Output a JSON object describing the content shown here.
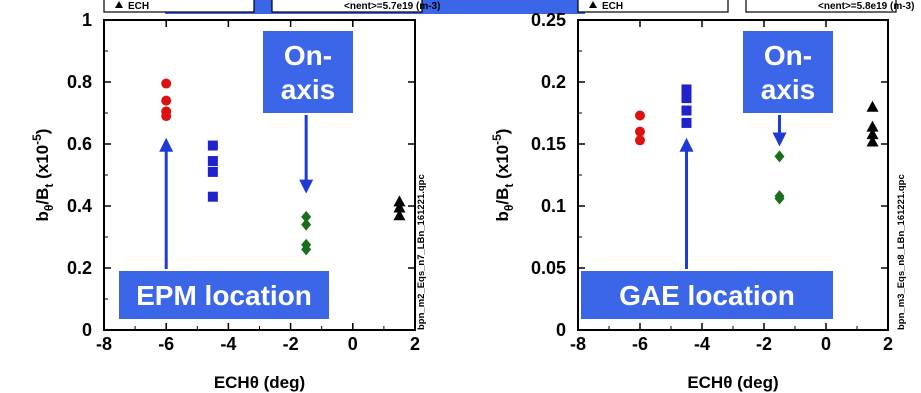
{
  "banner_colors": {
    "callout_fill": "#3b66e8",
    "callout_border": "#ffffff",
    "arrow": "#1f3bd6"
  },
  "colors": {
    "red": "#dd1111",
    "blue": "#2222cc",
    "green": "#1a6e1a",
    "black": "#000000"
  },
  "chart_data": [
    {
      "type": "scatter",
      "xlabel": "ECHθ (deg)",
      "ylabel": "bθ/Bt (x10-5)",
      "xlim": [
        -8,
        2
      ],
      "ylim": [
        0,
        1.0
      ],
      "xticks": [
        -8,
        -6,
        -4,
        -2,
        0,
        2
      ],
      "xtick_labels": [
        "-8",
        "-6",
        "-4",
        "-2",
        "0",
        "2"
      ],
      "yticks": [
        0,
        0.2,
        0.4,
        0.6,
        0.8,
        1.0
      ],
      "ytick_labels": [
        "0",
        "0.2",
        "0.4",
        "0.6",
        "0.8",
        "1"
      ],
      "side_label": "bpn_m2_Eqs_n7_LBn_161221.qpc",
      "top_partial_text": [
        "ECH",
        "<nent>=5.7e19 (m-3)"
      ],
      "series": [
        {
          "marker": "circle",
          "color": "#dd1111",
          "x": [
            -6,
            -6,
            -6,
            -6
          ],
          "y": [
            0.795,
            0.74,
            0.705,
            0.69
          ]
        },
        {
          "marker": "square",
          "color": "#2222cc",
          "x": [
            -4.5,
            -4.5,
            -4.5,
            -4.5
          ],
          "y": [
            0.595,
            0.545,
            0.51,
            0.43
          ]
        },
        {
          "marker": "diamond",
          "color": "#1a6e1a",
          "x": [
            -1.5,
            -1.5,
            -1.5,
            -1.5
          ],
          "y": [
            0.365,
            0.34,
            0.275,
            0.26
          ]
        },
        {
          "marker": "triangle",
          "color": "#000000",
          "x": [
            1.5,
            1.5,
            1.5
          ],
          "y": [
            0.415,
            0.395,
            0.37
          ]
        }
      ],
      "callouts": [
        {
          "text": "On-\naxis",
          "arrow": "down",
          "target_x": -1.5,
          "target_y": 0.44
        },
        {
          "text": "EPM location",
          "arrow": "up",
          "target_x": -6,
          "target_y": 0.62
        }
      ]
    },
    {
      "type": "scatter",
      "xlabel": "ECHθ (deg)",
      "ylabel": "bθ/Bt (x10-5)",
      "xlim": [
        -8,
        2
      ],
      "ylim": [
        0,
        0.25
      ],
      "xticks": [
        -8,
        -6,
        -4,
        -2,
        0,
        2
      ],
      "xtick_labels": [
        "-8",
        "-6",
        "-4",
        "-2",
        "0",
        "2"
      ],
      "yticks": [
        0,
        0.05,
        0.1,
        0.15,
        0.2,
        0.25
      ],
      "ytick_labels": [
        "0",
        "0.05",
        "0.1",
        "0.15",
        "0.2",
        "0.25"
      ],
      "side_label": "bpn_m3_Eqs_n8_LBn_161221.qpc",
      "top_partial_text": [
        "ECH",
        "<nent>=5.8e19 (m-3)"
      ],
      "series": [
        {
          "marker": "circle",
          "color": "#dd1111",
          "x": [
            -6,
            -6,
            -6
          ],
          "y": [
            0.173,
            0.16,
            0.153
          ]
        },
        {
          "marker": "square",
          "color": "#2222cc",
          "x": [
            -4.5,
            -4.5,
            -4.5,
            -4.5
          ],
          "y": [
            0.194,
            0.187,
            0.177,
            0.167
          ]
        },
        {
          "marker": "diamond",
          "color": "#1a6e1a",
          "x": [
            -1.5,
            -1.5,
            -1.5
          ],
          "y": [
            0.14,
            0.108,
            0.106
          ]
        },
        {
          "marker": "triangle",
          "color": "#000000",
          "x": [
            1.5,
            1.5,
            1.5,
            1.5
          ],
          "y": [
            0.18,
            0.164,
            0.158,
            0.152
          ]
        }
      ],
      "callouts": [
        {
          "text": "On-\naxis",
          "arrow": "down",
          "target_x": -1.5,
          "target_y": 0.148
        },
        {
          "text": "GAE location",
          "arrow": "up",
          "target_x": -4.5,
          "target_y": 0.155
        }
      ]
    }
  ],
  "top_banner": {
    "text": ""
  }
}
